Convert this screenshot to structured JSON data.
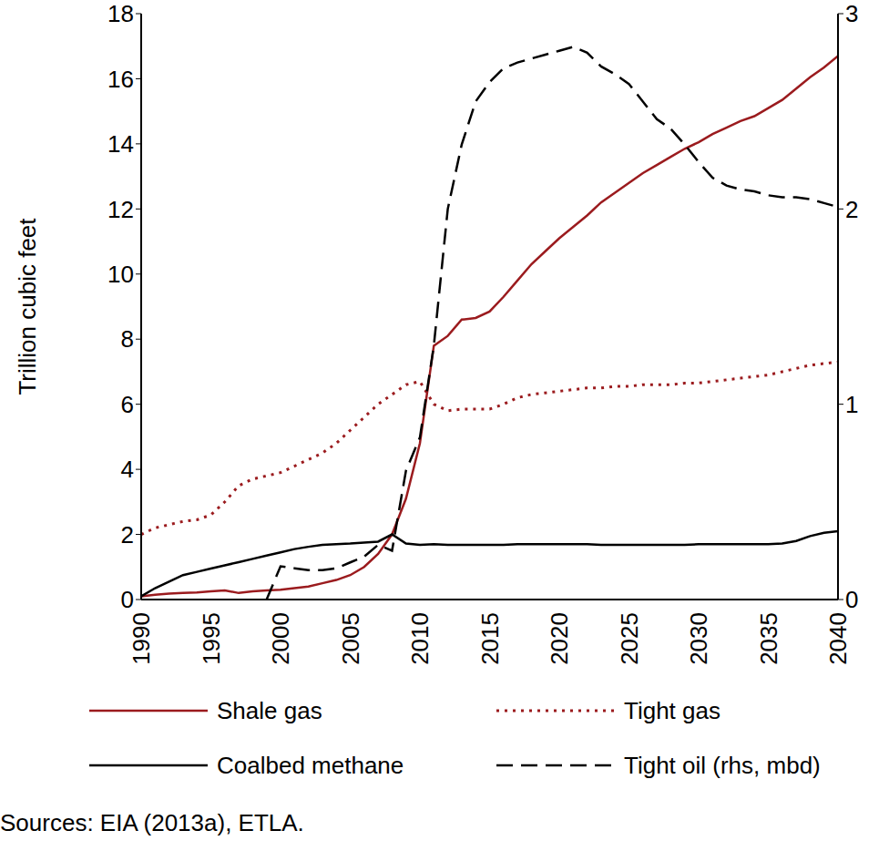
{
  "chart_data": {
    "type": "line",
    "y_label": "Trillion cubic feet",
    "source": "Sources: EIA (2013a), ETLA.",
    "x": [
      1990,
      1991,
      1992,
      1993,
      1994,
      1995,
      1996,
      1997,
      1998,
      1999,
      2000,
      2001,
      2002,
      2003,
      2004,
      2005,
      2006,
      2007,
      2008,
      2009,
      2010,
      2011,
      2012,
      2013,
      2014,
      2015,
      2016,
      2017,
      2018,
      2019,
      2020,
      2021,
      2022,
      2023,
      2024,
      2025,
      2026,
      2027,
      2028,
      2029,
      2030,
      2031,
      2032,
      2033,
      2034,
      2035,
      2036,
      2037,
      2038,
      2039,
      2040
    ],
    "xlim": [
      1990,
      2040
    ],
    "xticks": [
      1990,
      1995,
      2000,
      2005,
      2010,
      2015,
      2020,
      2025,
      2030,
      2035,
      2040
    ],
    "ylim": [
      0,
      18
    ],
    "yticks": [
      0,
      2,
      4,
      6,
      8,
      10,
      12,
      14,
      16,
      18
    ],
    "y2lim": [
      0,
      3
    ],
    "y2ticks": [
      0,
      1,
      2,
      3
    ],
    "grid": false,
    "legend": "bottom",
    "series": [
      {
        "name": "Shale gas",
        "color": "#9b1b1e",
        "line_style": "solid",
        "values": [
          0.1,
          0.15,
          0.18,
          0.2,
          0.22,
          0.25,
          0.28,
          0.2,
          0.25,
          0.28,
          0.3,
          0.35,
          0.4,
          0.5,
          0.6,
          0.75,
          1.0,
          1.4,
          2.0,
          3.1,
          4.8,
          7.8,
          8.1,
          8.6,
          8.65,
          8.85,
          9.3,
          9.8,
          10.3,
          10.7,
          11.1,
          11.45,
          11.8,
          12.2,
          12.5,
          12.8,
          13.1,
          13.35,
          13.6,
          13.85,
          14.05,
          14.3,
          14.5,
          14.7,
          14.85,
          15.1,
          15.35,
          15.7,
          16.05,
          16.35,
          16.7
        ]
      },
      {
        "name": "Tight gas",
        "color": "#9b1b1e",
        "line_style": "dotted",
        "values": [
          2.0,
          2.2,
          2.3,
          2.4,
          2.45,
          2.6,
          3.0,
          3.5,
          3.7,
          3.8,
          3.9,
          4.1,
          4.3,
          4.5,
          4.8,
          5.2,
          5.6,
          6.0,
          6.3,
          6.6,
          6.7,
          6.0,
          5.8,
          5.85,
          5.85,
          5.85,
          6.0,
          6.2,
          6.3,
          6.35,
          6.4,
          6.45,
          6.5,
          6.5,
          6.55,
          6.55,
          6.6,
          6.6,
          6.6,
          6.65,
          6.65,
          6.7,
          6.75,
          6.8,
          6.85,
          6.9,
          7.0,
          7.1,
          7.2,
          7.25,
          7.3
        ]
      },
      {
        "name": "Coalbed methane",
        "color": "#000000",
        "line_style": "solid",
        "values": [
          0.1,
          0.35,
          0.55,
          0.75,
          0.85,
          0.95,
          1.05,
          1.15,
          1.25,
          1.35,
          1.45,
          1.55,
          1.62,
          1.68,
          1.7,
          1.72,
          1.75,
          1.78,
          2.0,
          1.72,
          1.68,
          1.7,
          1.68,
          1.68,
          1.68,
          1.68,
          1.68,
          1.7,
          1.7,
          1.7,
          1.7,
          1.7,
          1.7,
          1.68,
          1.68,
          1.68,
          1.68,
          1.68,
          1.68,
          1.68,
          1.7,
          1.7,
          1.7,
          1.7,
          1.7,
          1.7,
          1.72,
          1.8,
          1.95,
          2.05,
          2.1
        ]
      },
      {
        "name": "Tight oil (rhs, mbd)",
        "color": "#000000",
        "line_style": "dashed",
        "axis": "y2",
        "values": [
          null,
          null,
          null,
          null,
          null,
          null,
          null,
          null,
          null,
          0,
          0.17,
          0.16,
          0.15,
          0.15,
          0.16,
          0.19,
          0.22,
          0.28,
          0.25,
          0.66,
          0.83,
          1.3,
          2.0,
          2.33,
          2.55,
          2.65,
          2.72,
          2.75,
          2.77,
          2.79,
          2.81,
          2.83,
          2.8,
          2.73,
          2.69,
          2.64,
          2.55,
          2.46,
          2.41,
          2.33,
          2.24,
          2.16,
          2.12,
          2.1,
          2.09,
          2.07,
          2.06,
          2.06,
          2.05,
          2.03,
          2.01
        ]
      }
    ]
  }
}
